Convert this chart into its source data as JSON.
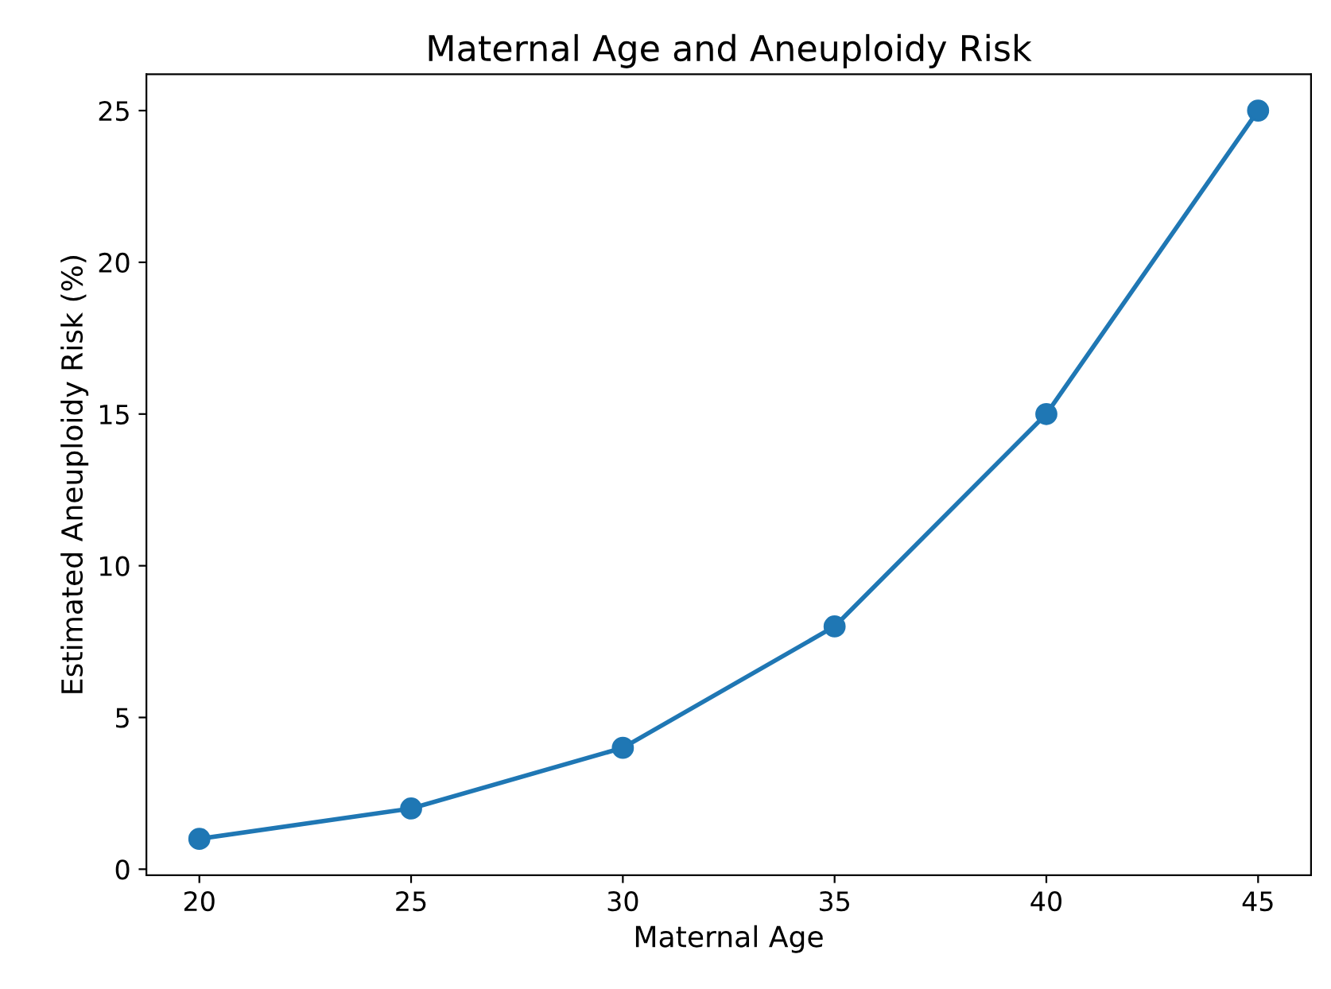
{
  "chart_data": {
    "type": "line",
    "title": "Maternal Age and Aneuploidy Risk",
    "xlabel": "Maternal Age",
    "ylabel": "Estimated Aneuploidy Risk (%)",
    "x": [
      20,
      25,
      30,
      35,
      40,
      45
    ],
    "series": [
      {
        "color": "#1f77b4",
        "values": [
          1,
          2,
          4,
          8,
          15,
          25
        ]
      }
    ],
    "xlim": [
      18.75,
      46.25
    ],
    "ylim": [
      -0.2,
      26.2
    ],
    "xticks": [
      20,
      25,
      30,
      35,
      40,
      45
    ],
    "yticks": [
      0,
      5,
      10,
      15,
      20,
      25
    ],
    "marker": "circle",
    "line_style": "solid",
    "grid": false,
    "legend": false
  }
}
